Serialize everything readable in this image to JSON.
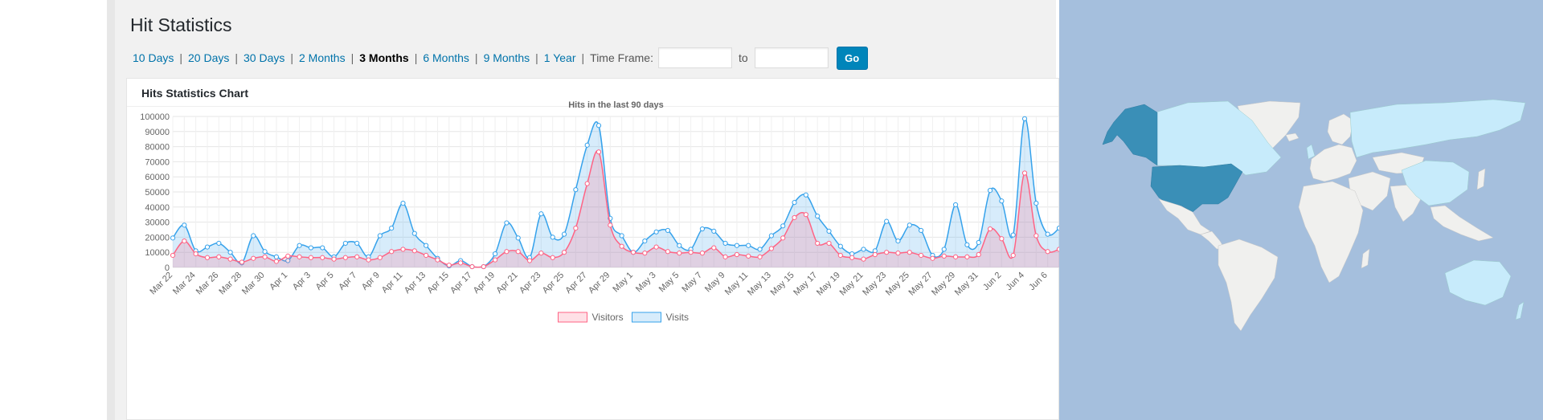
{
  "page": {
    "title": "Hit Statistics"
  },
  "filters": {
    "links": [
      "10 Days",
      "20 Days",
      "30 Days",
      "2 Months",
      "3 Months",
      "6 Months",
      "9 Months",
      "1 Year"
    ],
    "current_index": 4,
    "timeframe_label": "Time Frame:",
    "to_label": "to",
    "from_value": "",
    "to_value": "",
    "go_label": "Go"
  },
  "panel": {
    "title": "Hits Statistics Chart"
  },
  "chart_data": {
    "type": "line",
    "title": "Hits in the last 90 days",
    "xlabel": "",
    "ylabel": "",
    "ylim": [
      0,
      100000
    ],
    "yticks": [
      0,
      10000,
      20000,
      30000,
      40000,
      50000,
      60000,
      70000,
      80000,
      90000,
      100000
    ],
    "start_date": "Mar 22",
    "tick_labels": [
      "Mar 22",
      "Mar 24",
      "Mar 26",
      "Mar 28",
      "Mar 30",
      "Apr 1",
      "Apr 3",
      "Apr 5",
      "Apr 7",
      "Apr 9",
      "Apr 11",
      "Apr 13",
      "Apr 15",
      "Apr 17",
      "Apr 19",
      "Apr 21",
      "Apr 23",
      "Apr 25",
      "Apr 27",
      "Apr 29",
      "May 1",
      "May 3",
      "May 5",
      "May 7",
      "May 9",
      "May 11",
      "May 13",
      "May 15",
      "May 17",
      "May 19",
      "May 21",
      "May 23",
      "May 25",
      "May 27",
      "May 29",
      "May 31",
      "Jun 2",
      "Jun 4",
      "Jun 6"
    ],
    "grid": true,
    "legend": "bottom",
    "series": [
      {
        "name": "Visitors",
        "color": "#ff6384",
        "fill": "rgba(255,99,132,0.2)",
        "values": [
          8000,
          17500,
          9000,
          6500,
          7000,
          5500,
          3500,
          6000,
          7000,
          4000,
          7500,
          7000,
          6500,
          6500,
          5500,
          6500,
          7000,
          5000,
          6500,
          10500,
          12000,
          11000,
          8000,
          5000,
          1500,
          3000,
          500,
          500,
          5000,
          10500,
          10500,
          4500,
          9500,
          6500,
          10000,
          26000,
          55500,
          76500,
          28000,
          14000,
          10000,
          9500,
          13500,
          10500,
          9500,
          10000,
          9500,
          13000,
          7000,
          8500,
          7500,
          7000,
          12500,
          19500,
          33000,
          35000,
          16000,
          16000,
          8000,
          6500,
          5500,
          8500,
          10000,
          9500,
          10000,
          8000,
          6000,
          7500,
          7000,
          7000,
          8500,
          25500,
          19000,
          8000,
          62500,
          21000,
          10500,
          12000
        ]
      },
      {
        "name": "Visits",
        "color": "#36a2eb",
        "fill": "rgba(54,162,235,0.2)",
        "values": [
          19500,
          28000,
          11000,
          13500,
          16000,
          10000,
          3000,
          21000,
          10500,
          7000,
          4500,
          14500,
          13000,
          13000,
          7000,
          16000,
          16000,
          7000,
          21000,
          26000,
          42500,
          22500,
          14500,
          6000,
          1000,
          4500,
          500,
          500,
          9000,
          29500,
          19500,
          6500,
          35500,
          20000,
          22000,
          51500,
          81000,
          94000,
          32500,
          21000,
          10000,
          17500,
          23500,
          24500,
          14500,
          12000,
          25500,
          24000,
          16000,
          14500,
          14500,
          12000,
          21000,
          27500,
          43000,
          48000,
          34000,
          24000,
          14000,
          9000,
          12000,
          11000,
          30500,
          17500,
          28000,
          24500,
          8000,
          12000,
          41500,
          15000,
          16500,
          51000,
          44000,
          21500,
          98500,
          42500,
          22000,
          26000
        ]
      }
    ]
  },
  "map": {
    "ocean_color": "#a5bfdd",
    "land_color": "#f0f0ee",
    "light_color": "#c7ebfb",
    "dark_color": "#3a8fb7"
  }
}
